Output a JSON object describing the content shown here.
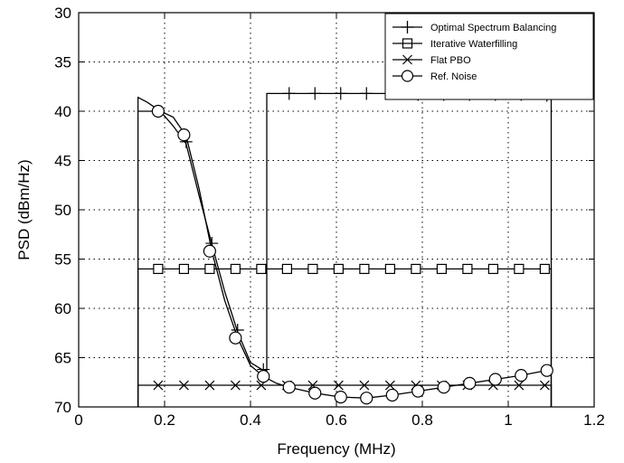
{
  "chart_data": {
    "type": "line",
    "title": "",
    "xlabel": "Frequency (MHz)",
    "ylabel": "PSD (dBm/Hz)",
    "xlim": [
      0,
      1.2
    ],
    "ylim": [
      30,
      70
    ],
    "y_inverted": true,
    "xticks": [
      0,
      0.2,
      0.4,
      0.6,
      0.8,
      1,
      1.2
    ],
    "xtick_labels": [
      "0",
      "0.2",
      "0.4",
      "0.6",
      "0.8",
      "1",
      "1.2"
    ],
    "yticks": [
      30,
      35,
      40,
      45,
      50,
      55,
      60,
      65,
      70
    ],
    "ytick_labels": [
      "30",
      "35",
      "40",
      "45",
      "50",
      "55",
      "60",
      "65",
      "70"
    ],
    "grid": true,
    "legend_position": "top-right",
    "series": [
      {
        "name": "Optimal Spectrum Balancing",
        "marker": "plus",
        "line": [
          [
            0.138,
            70
          ],
          [
            0.138,
            38.6
          ],
          [
            0.16,
            39.1
          ],
          [
            0.19,
            40.0
          ],
          [
            0.22,
            41.5
          ],
          [
            0.25,
            43.3
          ],
          [
            0.28,
            48.5
          ],
          [
            0.31,
            53.5
          ],
          [
            0.34,
            58.3
          ],
          [
            0.37,
            62.4
          ],
          [
            0.4,
            65.5
          ],
          [
            0.43,
            66.3
          ],
          [
            0.438,
            66.3
          ],
          [
            0.438,
            38.2
          ],
          [
            0.6,
            38.2
          ],
          [
            0.75,
            38.2
          ],
          [
            0.9,
            38.3
          ],
          [
            1.1,
            38.4
          ],
          [
            1.1,
            70
          ]
        ],
        "markers": [
          [
            0.25,
            43.1
          ],
          [
            0.31,
            53.4
          ],
          [
            0.37,
            62.2
          ],
          [
            0.43,
            66.2
          ],
          [
            0.49,
            38.2
          ],
          [
            0.55,
            38.2
          ],
          [
            0.61,
            38.2
          ],
          [
            0.67,
            38.2
          ],
          [
            0.73,
            38.2
          ],
          [
            0.79,
            38.3
          ],
          [
            0.85,
            38.3
          ],
          [
            0.91,
            38.3
          ],
          [
            0.97,
            38.3
          ],
          [
            1.03,
            38.3
          ],
          [
            1.09,
            38.4
          ]
        ]
      },
      {
        "name": "Iterative Waterfilling",
        "marker": "square",
        "line": [
          [
            0.138,
            70
          ],
          [
            0.138,
            56.0
          ],
          [
            1.1,
            56.0
          ],
          [
            1.1,
            70
          ]
        ],
        "markers": [
          [
            0.185,
            56.0
          ],
          [
            0.245,
            56.0
          ],
          [
            0.305,
            56.0
          ],
          [
            0.365,
            56.0
          ],
          [
            0.425,
            56.0
          ],
          [
            0.485,
            56.0
          ],
          [
            0.545,
            56.0
          ],
          [
            0.605,
            56.0
          ],
          [
            0.665,
            56.0
          ],
          [
            0.725,
            56.0
          ],
          [
            0.785,
            56.0
          ],
          [
            0.845,
            56.0
          ],
          [
            0.905,
            56.0
          ],
          [
            0.965,
            56.0
          ],
          [
            1.025,
            56.0
          ],
          [
            1.085,
            56.0
          ]
        ]
      },
      {
        "name": "Flat PBO",
        "marker": "x",
        "line": [
          [
            0.138,
            70
          ],
          [
            0.138,
            67.8
          ],
          [
            1.1,
            67.8
          ],
          [
            1.1,
            70
          ]
        ],
        "markers": [
          [
            0.185,
            67.8
          ],
          [
            0.245,
            67.8
          ],
          [
            0.305,
            67.8
          ],
          [
            0.365,
            67.8
          ],
          [
            0.425,
            67.8
          ],
          [
            0.485,
            67.8
          ],
          [
            0.545,
            67.8
          ],
          [
            0.605,
            67.8
          ],
          [
            0.665,
            67.8
          ],
          [
            0.725,
            67.8
          ],
          [
            0.785,
            67.8
          ],
          [
            0.845,
            67.8
          ],
          [
            0.905,
            67.8
          ],
          [
            0.965,
            67.8
          ],
          [
            1.025,
            67.8
          ],
          [
            1.085,
            67.8
          ]
        ]
      },
      {
        "name": "Ref. Noise",
        "marker": "circle",
        "line": [
          [
            0.138,
            40.0
          ],
          [
            0.16,
            40.0
          ],
          [
            0.19,
            40.0
          ],
          [
            0.22,
            40.6
          ],
          [
            0.25,
            42.5
          ],
          [
            0.28,
            47.8
          ],
          [
            0.31,
            54.2
          ],
          [
            0.34,
            59.2
          ],
          [
            0.37,
            63.0
          ],
          [
            0.4,
            65.8
          ],
          [
            0.43,
            66.9
          ],
          [
            0.46,
            67.6
          ],
          [
            0.49,
            68.0
          ],
          [
            0.55,
            68.6
          ],
          [
            0.61,
            69.0
          ],
          [
            0.67,
            69.1
          ],
          [
            0.73,
            68.8
          ],
          [
            0.79,
            68.4
          ],
          [
            0.85,
            68.0
          ],
          [
            0.91,
            67.6
          ],
          [
            0.97,
            67.2
          ],
          [
            1.03,
            66.8
          ],
          [
            1.1,
            66.2
          ]
        ],
        "markers": [
          [
            0.185,
            40.0
          ],
          [
            0.245,
            42.4
          ],
          [
            0.305,
            54.2
          ],
          [
            0.365,
            63.0
          ],
          [
            0.43,
            66.9
          ],
          [
            0.49,
            68.0
          ],
          [
            0.55,
            68.6
          ],
          [
            0.61,
            69.0
          ],
          [
            0.67,
            69.1
          ],
          [
            0.73,
            68.8
          ],
          [
            0.79,
            68.4
          ],
          [
            0.85,
            68.0
          ],
          [
            0.91,
            67.6
          ],
          [
            0.97,
            67.2
          ],
          [
            1.03,
            66.8
          ],
          [
            1.09,
            66.3
          ]
        ]
      }
    ]
  }
}
